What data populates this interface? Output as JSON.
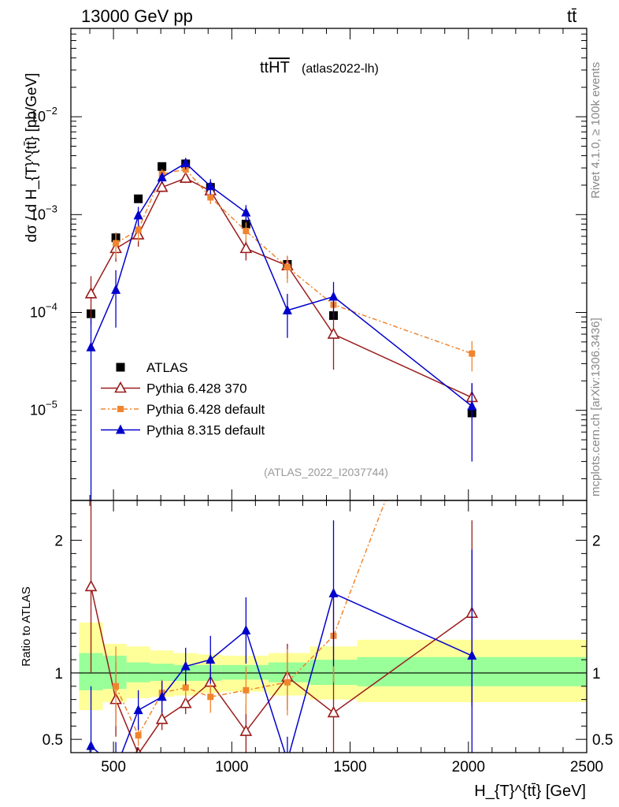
{
  "header": {
    "beam": "13000 GeV pp",
    "process": "tt̄",
    "title_main": "tt",
    "title_overline": "HT",
    "title_tag": "(atlas2022-lh)",
    "side_rivet": "Rivet 4.1.0, ≥ 100k events",
    "side_site": "mcplots.cern.ch [arXiv:1306.3436]",
    "analysis_id": "(ATLAS_2022_I2037744)"
  },
  "colors": {
    "data": "#000000",
    "pythia6_370": "#9b1b1b",
    "pythia6_default": "#f0852e",
    "pythia8_default": "#0000cc",
    "band_inner": "#99ff99",
    "band_outer": "#ffff99"
  },
  "legend": {
    "items": [
      "ATLAS",
      "Pythia 6.428 370",
      "Pythia 6.428 default",
      "Pythia 8.315 default"
    ]
  },
  "chart_data": [
    {
      "type": "scatter",
      "panel": "main",
      "yscale": "log",
      "ylabel": "dσ / d H_{T}^{tt̄} [pb/GeV]",
      "xlim": [
        320,
        2500
      ],
      "ylim": [
        1.2e-06,
        0.08
      ],
      "yticks": [
        "10^-5",
        "10^-4",
        "10^-3",
        "10^-2"
      ],
      "x": [
        405,
        510,
        605,
        705,
        805,
        910,
        1060,
        1235,
        1430,
        2015
      ],
      "series": [
        {
          "name": "ATLAS",
          "marker": "square",
          "values": [
            9.7e-05,
            0.00058,
            0.00145,
            0.0031,
            0.0033,
            0.0019,
            0.0008,
            0.00031,
            9.3e-05,
            9.4e-06
          ],
          "err": [
            0,
            0,
            0,
            0,
            0,
            0,
            0,
            0,
            0,
            0
          ]
        },
        {
          "name": "Pythia 6.428 370",
          "marker": "open-triangle",
          "values": [
            0.000155,
            0.00045,
            0.00062,
            0.0019,
            0.00235,
            0.00175,
            0.00045,
            0.0003,
            6e-05,
            1.35e-05
          ],
          "err": [
            8e-05,
            0.00012,
            0.00015,
            0.0002,
            0.00025,
            0.0002,
            0.00011,
            8e-05,
            3.4e-05,
            5e-06
          ]
        },
        {
          "name": "Pythia 6.428 default",
          "marker": "small-square",
          "values": [
            null,
            0.00051,
            0.0007,
            0.0026,
            0.0029,
            0.0015,
            0.00068,
            0.00029,
            0.00012,
            3.8e-05
          ],
          "err": [
            0,
            0.00015,
            0.00017,
            0.0003,
            0.0003,
            0.00022,
            0.00015,
            9e-05,
            3e-05,
            1.3e-05
          ]
        },
        {
          "name": "Pythia 8.315 default",
          "marker": "triangle",
          "values": [
            4.4e-05,
            0.00017,
            0.00098,
            0.0024,
            0.00335,
            0.00195,
            0.00105,
            0.000105,
            0.000145,
            1.1e-05
          ],
          "err": [
            4.3e-05,
            0.0001,
            0.00022,
            0.0003,
            0.00045,
            0.00035,
            0.0002,
            5e-05,
            6e-05,
            8e-06
          ]
        }
      ]
    },
    {
      "type": "line",
      "panel": "ratio",
      "ylabel": "Ratio to ATLAS",
      "xlabel": "H_{T}^{tt̄} [GeV]",
      "xlim": [
        320,
        2500
      ],
      "ylim": [
        0.4,
        2.3
      ],
      "yticks": [
        0.5,
        1,
        2
      ],
      "xticks": [
        500,
        1000,
        1500,
        2000,
        2500
      ],
      "x": [
        405,
        510,
        605,
        705,
        805,
        910,
        1060,
        1235,
        1430,
        2015
      ],
      "bands": {
        "edges": [
          355,
          455,
          555,
          655,
          755,
          855,
          955,
          1155,
          1330,
          1530,
          2500
        ],
        "inner": [
          [
            0.87,
            1.15
          ],
          [
            0.88,
            1.13
          ],
          [
            0.93,
            1.08
          ],
          [
            0.94,
            1.07
          ],
          [
            0.94,
            1.06
          ],
          [
            0.94,
            1.06
          ],
          [
            0.95,
            1.06
          ],
          [
            0.93,
            1.08
          ],
          [
            0.91,
            1.1
          ],
          [
            0.9,
            1.12
          ]
        ],
        "outer": [
          [
            0.72,
            1.38
          ],
          [
            0.78,
            1.22
          ],
          [
            0.81,
            1.2
          ],
          [
            0.82,
            1.17
          ],
          [
            0.83,
            1.15
          ],
          [
            0.85,
            1.14
          ],
          [
            0.86,
            1.13
          ],
          [
            0.83,
            1.15
          ],
          [
            0.8,
            1.2
          ],
          [
            0.78,
            1.25
          ]
        ]
      },
      "series": [
        {
          "name": "Pythia 6.428 370",
          "values": [
            1.65,
            0.8,
            0.39,
            0.65,
            0.77,
            0.93,
            0.56,
            0.97,
            0.7,
            1.45
          ],
          "err": [
            0.65,
            0.28,
            0.05,
            0.08,
            0.08,
            0.1,
            0.2,
            0.25,
            0.35,
            0.7
          ]
        },
        {
          "name": "Pythia 6.428 default",
          "values": [
            null,
            0.9,
            0.53,
            0.85,
            0.89,
            0.82,
            0.87,
            0.93,
            1.28,
            4.0
          ],
          "err": [
            0,
            0.3,
            0.08,
            0.1,
            0.09,
            0.12,
            0.18,
            0.25,
            0.35,
            1.3
          ]
        },
        {
          "name": "Pythia 8.315 default",
          "values": [
            0.45,
            0.28,
            0.72,
            0.82,
            1.05,
            1.1,
            1.32,
            0.34,
            1.6,
            1.13
          ],
          "err": [
            0.45,
            0.2,
            0.15,
            0.12,
            0.14,
            0.18,
            0.25,
            0.18,
            0.55,
            0.8
          ]
        }
      ]
    }
  ]
}
